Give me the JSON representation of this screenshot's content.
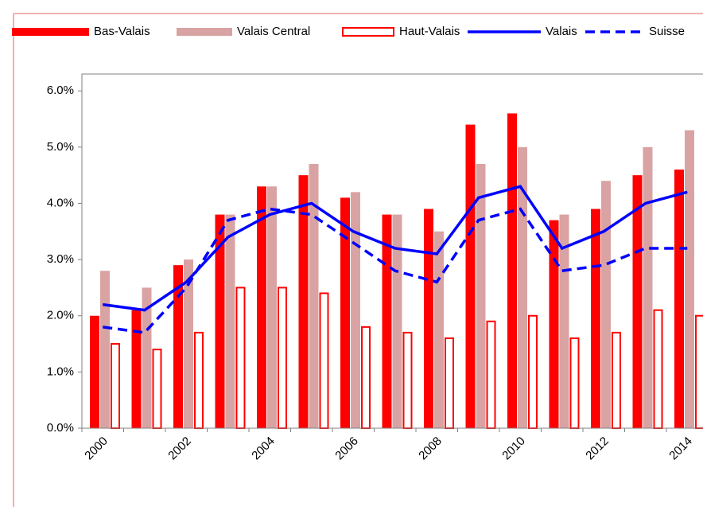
{
  "chart_data": {
    "type": "bar",
    "categories": [
      "2000",
      null,
      "2002",
      null,
      "2004",
      null,
      "2006",
      null,
      "2008",
      null,
      "2010",
      null,
      "2012",
      null,
      "2014"
    ],
    "series": [
      {
        "name": "Bas-Valais",
        "type": "bar",
        "color": "#ff0000",
        "fill": "#ff0000",
        "values": [
          2.0,
          2.1,
          2.9,
          3.8,
          4.3,
          4.5,
          4.1,
          3.8,
          3.9,
          5.4,
          5.6,
          3.7,
          3.9,
          4.5,
          4.6
        ]
      },
      {
        "name": "Valais Central",
        "type": "bar",
        "color": "#d9a3a3",
        "fill": "#d9a3a3",
        "values": [
          2.8,
          2.5,
          3.0,
          3.8,
          4.3,
          4.7,
          4.2,
          3.8,
          3.5,
          4.7,
          5.0,
          3.8,
          4.4,
          5.0,
          5.3
        ]
      },
      {
        "name": "Haut-Valais",
        "type": "bar",
        "color": "#ff0000",
        "fill": "#ffffff",
        "values": [
          1.5,
          1.4,
          1.7,
          2.5,
          2.5,
          2.4,
          1.8,
          1.7,
          1.6,
          1.9,
          2.0,
          1.6,
          1.7,
          2.1,
          2.0
        ]
      },
      {
        "name": "Valais",
        "type": "line",
        "color": "#0000ff",
        "dashed": false,
        "values": [
          2.2,
          2.1,
          2.6,
          3.4,
          3.8,
          4.0,
          3.5,
          3.2,
          3.1,
          4.1,
          4.3,
          3.2,
          3.5,
          4.0,
          4.2
        ]
      },
      {
        "name": "Suisse",
        "type": "line",
        "color": "#0000ff",
        "dashed": true,
        "values": [
          1.8,
          1.7,
          2.5,
          3.7,
          3.9,
          3.8,
          3.3,
          2.8,
          2.6,
          3.7,
          3.9,
          2.8,
          2.9,
          3.2,
          3.2
        ]
      }
    ],
    "ylim": [
      0,
      6.3
    ],
    "yticks": [
      {
        "value": 0,
        "label": "0.0%"
      },
      {
        "value": 1,
        "label": "1.0%"
      },
      {
        "value": 2,
        "label": "2.0%"
      },
      {
        "value": 3,
        "label": "3.0%"
      },
      {
        "value": 4,
        "label": "4.0%"
      },
      {
        "value": 5,
        "label": "5.0%"
      },
      {
        "value": 6,
        "label": "6.0%"
      }
    ],
    "legend": "top"
  }
}
